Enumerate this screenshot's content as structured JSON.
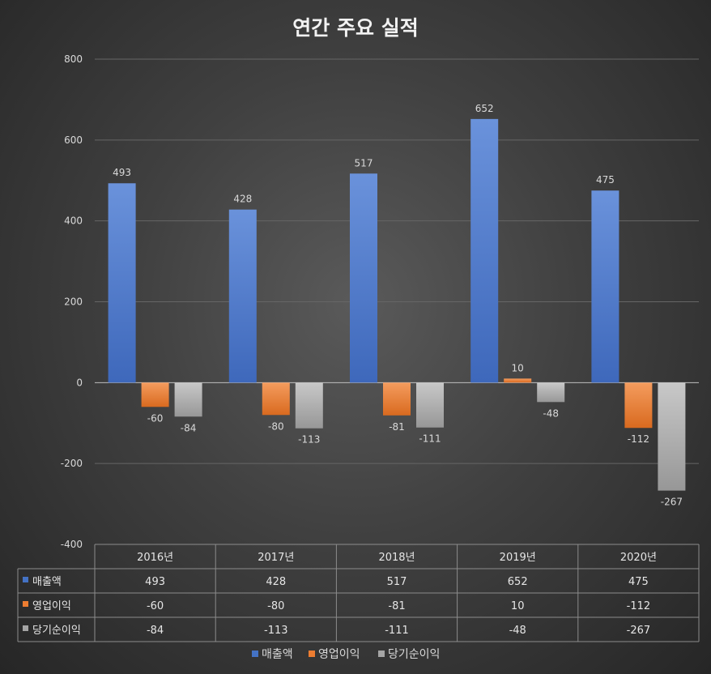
{
  "chart_data": {
    "type": "bar",
    "title": "연간 주요 실적",
    "categories": [
      "2016년",
      "2017년",
      "2018년",
      "2019년",
      "2020년"
    ],
    "series": [
      {
        "name": "매출액",
        "color": "#4472c4",
        "values": [
          493,
          428,
          517,
          652,
          475
        ]
      },
      {
        "name": "영업이익",
        "color": "#ed7d31",
        "values": [
          -60,
          -80,
          -81,
          10,
          -112
        ]
      },
      {
        "name": "당기순이익",
        "color": "#a5a5a5",
        "values": [
          -84,
          -113,
          -111,
          -48,
          -267
        ]
      }
    ],
    "ylim": [
      -400,
      800
    ],
    "yticks": [
      800,
      600,
      400,
      200,
      0,
      -200,
      -400
    ],
    "grid": true,
    "legend": "bottom",
    "data_table": true
  }
}
